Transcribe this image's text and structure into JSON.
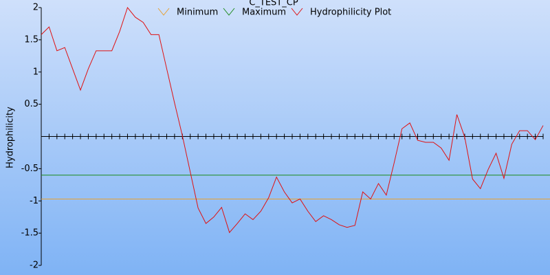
{
  "chart_data": {
    "type": "line",
    "title": "C_TEST_CP",
    "ylabel": "Hydrophilicity",
    "ylim": [
      -2,
      2
    ],
    "yticks": [
      -2,
      -1.5,
      -1,
      -0.5,
      0.5,
      1,
      1.5,
      2
    ],
    "xlim": [
      0,
      64
    ],
    "xticks": [
      0,
      1,
      2,
      3,
      4,
      5,
      6,
      7,
      8,
      9,
      10,
      11,
      12,
      13,
      14,
      15,
      16,
      17,
      18,
      19,
      20,
      21,
      22,
      23,
      24,
      25,
      26,
      27,
      28,
      29,
      30,
      31,
      32,
      33,
      34,
      35,
      36,
      37,
      38,
      39,
      40,
      41,
      42,
      43,
      44,
      45,
      46,
      47,
      48,
      49,
      50,
      51,
      52,
      53,
      54,
      55,
      56,
      57,
      58,
      59,
      60,
      61,
      62,
      63,
      64
    ],
    "series": [
      {
        "name": "Minimum",
        "color": "#e8a030",
        "value": -0.97
      },
      {
        "name": "Maximum",
        "color": "#1a8a1a",
        "value": -0.6
      },
      {
        "name": "Hydrophilicity Plot",
        "color": "#e01010",
        "values": [
          1.58,
          1.7,
          1.33,
          1.38,
          1.05,
          0.72,
          1.05,
          1.33,
          1.33,
          1.33,
          1.63,
          2.0,
          1.85,
          1.77,
          1.58,
          1.58,
          1.05,
          0.52,
          0.01,
          -0.55,
          -1.11,
          -1.35,
          -1.25,
          -1.1,
          -1.49,
          -1.35,
          -1.2,
          -1.29,
          -1.16,
          -0.95,
          -0.63,
          -0.86,
          -1.03,
          -0.97,
          -1.16,
          -1.32,
          -1.23,
          -1.29,
          -1.37,
          -1.41,
          -1.38,
          -0.86,
          -0.97,
          -0.73,
          -0.91,
          -0.41,
          0.12,
          0.21,
          -0.06,
          -0.09,
          -0.09,
          -0.18,
          -0.37,
          0.34,
          -0.01,
          -0.66,
          -0.81,
          -0.51,
          -0.26,
          -0.65,
          -0.12,
          0.09,
          0.09,
          -0.05,
          0.17
        ]
      }
    ]
  }
}
